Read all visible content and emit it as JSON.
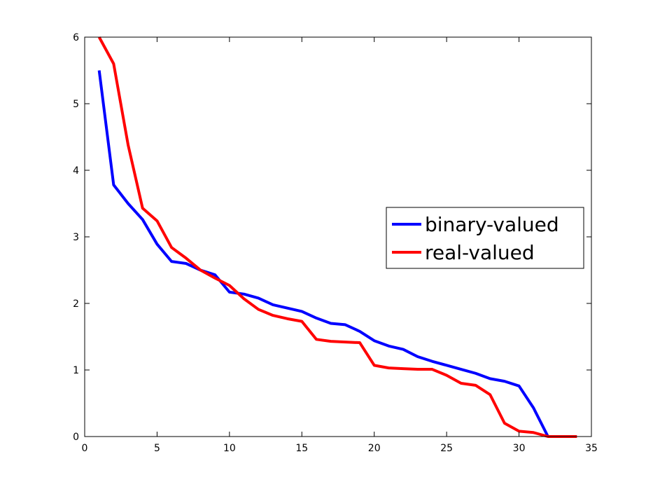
{
  "chart_data": {
    "type": "line",
    "title": "",
    "xlabel": "",
    "ylabel": "",
    "xlim": [
      0,
      35
    ],
    "ylim": [
      0,
      6
    ],
    "xticks": [
      0,
      5,
      10,
      15,
      20,
      25,
      30,
      35
    ],
    "yticks": [
      0,
      1,
      2,
      3,
      4,
      5,
      6
    ],
    "grid": false,
    "legend_position": "right",
    "series": [
      {
        "name": "binary-valued",
        "color": "#0000ff",
        "x": [
          1,
          2,
          3,
          4,
          5,
          6,
          7,
          8,
          9,
          10,
          11,
          12,
          13,
          14,
          15,
          16,
          17,
          18,
          19,
          20,
          21,
          22,
          23,
          24,
          25,
          26,
          27,
          28,
          29,
          30,
          31,
          32
        ],
        "y": [
          5.5,
          3.78,
          3.5,
          3.26,
          2.89,
          2.63,
          2.6,
          2.5,
          2.43,
          2.17,
          2.14,
          2.08,
          1.98,
          1.93,
          1.88,
          1.78,
          1.7,
          1.68,
          1.58,
          1.44,
          1.36,
          1.31,
          1.2,
          1.13,
          1.07,
          1.01,
          0.95,
          0.87,
          0.83,
          0.76,
          0.43,
          0.0
        ]
      },
      {
        "name": "real-valued",
        "color": "#ff0000",
        "x": [
          1,
          2,
          3,
          4,
          5,
          6,
          7,
          8,
          9,
          10,
          11,
          12,
          13,
          14,
          15,
          16,
          17,
          18,
          19,
          20,
          21,
          22,
          23,
          24,
          25,
          26,
          27,
          28,
          29,
          30,
          31,
          32,
          33,
          34
        ],
        "y": [
          6.0,
          5.6,
          4.38,
          3.43,
          3.24,
          2.84,
          2.68,
          2.5,
          2.38,
          2.27,
          2.07,
          1.91,
          1.82,
          1.77,
          1.73,
          1.46,
          1.43,
          1.42,
          1.41,
          1.07,
          1.03,
          1.02,
          1.01,
          1.01,
          0.92,
          0.8,
          0.77,
          0.63,
          0.2,
          0.08,
          0.06,
          0.0,
          0.0,
          0.0
        ]
      }
    ]
  }
}
